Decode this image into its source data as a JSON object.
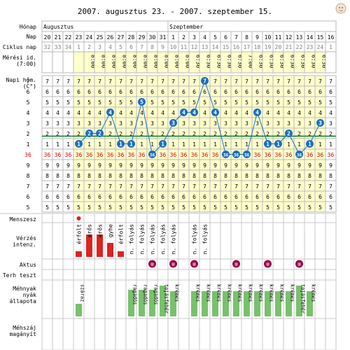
{
  "title": "2007. augusztus 23. - 2007. szeptember 15.",
  "labels": {
    "honap": "Hónap",
    "nap": "Nap",
    "ciklus": "Ciklus nap",
    "meresi": "Mérési id. (7:00)",
    "napi": "Napi hőm. (C°)",
    "menszesz": "Menszesz",
    "verzes": "Vérzés intenz.",
    "aktus": "Aktus",
    "terh": "Terh teszt",
    "mehnyak": "Méhnyak nyák állapota",
    "mehszaj": "Méhszáj magányít"
  },
  "months": [
    "Augusztus",
    "Szeptember"
  ],
  "days": [
    "20",
    "21",
    "22",
    "23",
    "24",
    "25",
    "26",
    "27",
    "28",
    "29",
    "30",
    "31",
    "1",
    "2",
    "3",
    "4",
    "5",
    "6",
    "7",
    "8",
    "9",
    "10",
    "11",
    "12",
    "13",
    "14",
    "15",
    "16"
  ],
  "cycle_days": [
    "32",
    "33",
    "34",
    "1",
    "2",
    "3",
    "4",
    "5",
    "6",
    "7",
    "8",
    "9",
    "10",
    "11",
    "12",
    "13",
    "14",
    "15",
    "16",
    "17",
    "18",
    "19",
    "20",
    "21",
    "22",
    "23",
    "24",
    "1"
  ],
  "times": [
    "",
    "",
    "",
    "",
    "8:00",
    "8:00",
    "8:00",
    "8:00",
    "8:00",
    "8:00",
    "8:00",
    "8:00",
    "8:00",
    "8:00",
    "6:30",
    "6:30",
    "6:30",
    "6:30",
    "6:30",
    "7:00",
    "6:30",
    "6:30",
    "6:30",
    "6:30",
    "6:30",
    "6:30",
    "6:30",
    ""
  ],
  "temp_rows": [
    "7",
    "6",
    "5",
    "4",
    "3",
    "2",
    "1",
    "36",
    "9",
    "8",
    "7",
    "6",
    "5"
  ],
  "accent_temp": "#cc0000",
  "temp_colors": [
    "#ffffcc",
    "#ffffff"
  ],
  "points_color": "#1a6fc4",
  "coverline_color": "#007a2a",
  "chart_data": {
    "type": "line",
    "series": [
      {
        "points": [
          {
            "x": "23",
            "y": "1"
          },
          {
            "x": "24",
            "y": "2"
          },
          {
            "x": "25",
            "y": "2"
          },
          {
            "x": "26",
            "y": "4"
          },
          {
            "x": "27",
            "y": "1"
          },
          {
            "x": "28",
            "y": "1"
          },
          {
            "x": "29",
            "y": "5"
          },
          {
            "x": "30",
            "y": "36"
          },
          {
            "x": "31",
            "y": "1"
          },
          {
            "x": "1",
            "y": "3"
          },
          {
            "x": "2",
            "y": "4"
          },
          {
            "x": "3",
            "y": "4"
          },
          {
            "x": "4",
            "y": "7"
          },
          {
            "x": "5",
            "y": "4"
          },
          {
            "x": "6",
            "y": "36"
          },
          {
            "x": "7",
            "y": "36"
          },
          {
            "x": "8",
            "y": "36"
          },
          {
            "x": "9",
            "y": "4"
          },
          {
            "x": "10",
            "y": "1"
          },
          {
            "x": "11",
            "y": "1"
          },
          {
            "x": "12",
            "y": "2"
          },
          {
            "x": "13",
            "y": "36"
          },
          {
            "x": "14",
            "y": "1"
          },
          {
            "x": "15",
            "y": "3"
          }
        ]
      }
    ]
  },
  "menses": {
    "dot_day_index": 3,
    "entries": [
      {
        "i": 3,
        "text": "érfolt",
        "level": 1
      },
      {
        "i": 4,
        "text": "erős",
        "level": 3
      },
      {
        "i": 5,
        "text": "erős",
        "level": 3
      },
      {
        "i": 6,
        "text": "gyhe",
        "level": 2
      },
      {
        "i": 7,
        "text": "érfolt",
        "level": 1
      },
      {
        "i": 8,
        "text": "n. folyás",
        "level": 0
      },
      {
        "i": 9,
        "text": "n. folyás",
        "level": 0
      },
      {
        "i": 10,
        "text": "n. folyás",
        "level": 0
      },
      {
        "i": 11,
        "text": "n. folyás",
        "level": 0
      },
      {
        "i": 12,
        "text": "n. folyás",
        "level": 0
      },
      {
        "i": 14,
        "text": "n. folyás",
        "level": 0
      },
      {
        "i": 15,
        "text": "n. folyás",
        "level": 0
      }
    ],
    "bar_color": "#dd2222"
  },
  "aktus": {
    "days": [
      10,
      12,
      14,
      18,
      21,
      24
    ],
    "symbol": "⑧",
    "color": "#990044"
  },
  "mucus": {
    "color": "#77c26b",
    "entries": [
      {
        "i": 3,
        "text": "száraz",
        "h": 18
      },
      {
        "i": 8,
        "text": "ragadós",
        "h": 38
      },
      {
        "i": 9,
        "text": "ragadós",
        "h": 38
      },
      {
        "i": 10,
        "text": "ragadós",
        "h": 38
      },
      {
        "i": 11,
        "text": "tojásfehér",
        "h": 44
      },
      {
        "i": 12,
        "text": "krémes",
        "h": 36
      },
      {
        "i": 14,
        "text": "krémes",
        "h": 36
      },
      {
        "i": 15,
        "text": "krémes",
        "h": 36
      },
      {
        "i": 16,
        "text": "krémes",
        "h": 36
      },
      {
        "i": 17,
        "text": "krémes",
        "h": 36
      },
      {
        "i": 18,
        "text": "krémes",
        "h": 36
      },
      {
        "i": 19,
        "text": "krémes",
        "h": 36
      },
      {
        "i": 20,
        "text": "krémes",
        "h": 36
      },
      {
        "i": 21,
        "text": "krémes",
        "h": 36
      },
      {
        "i": 22,
        "text": "krémes",
        "h": 36
      },
      {
        "i": 23,
        "text": "krémes",
        "h": 36
      },
      {
        "i": 24,
        "text": "tojásfehér",
        "h": 44
      },
      {
        "i": 25,
        "text": "krémes",
        "h": 36
      }
    ]
  }
}
